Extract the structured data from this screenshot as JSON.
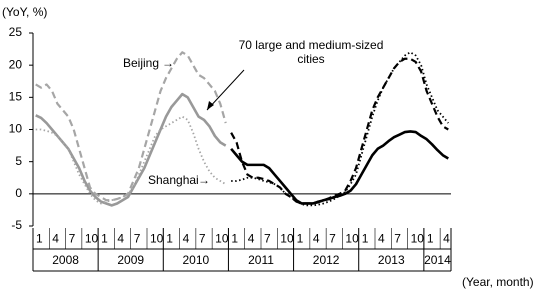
{
  "chart_data": {
    "type": "line",
    "y_axis_label": "(YoY, %)",
    "x_axis_label": "(Year, month)",
    "ylim": [
      -5,
      25
    ],
    "yticks": [
      -5,
      0,
      5,
      10,
      15,
      20,
      25
    ],
    "categories": [
      "1",
      null,
      null,
      "4",
      null,
      null,
      "7",
      null,
      null,
      "10",
      null,
      null,
      "1",
      null,
      null,
      "4",
      null,
      null,
      "7",
      null,
      null,
      "10",
      null,
      null,
      "1",
      null,
      null,
      "4",
      null,
      null,
      "7",
      null,
      null,
      "10",
      null,
      null,
      "1",
      null,
      null,
      "4",
      null,
      null,
      "7",
      null,
      null,
      "10",
      null,
      null,
      "1",
      null,
      null,
      "4",
      null,
      null,
      "7",
      null,
      null,
      "10",
      null,
      null,
      "1",
      null,
      null,
      "4",
      null,
      null,
      "7",
      null,
      null,
      "10",
      null,
      null,
      "1",
      null,
      null,
      "4",
      null
    ],
    "years": [
      "2008",
      "2009",
      "2010",
      "2011",
      "2012",
      "2013",
      "2014"
    ],
    "series": [
      {
        "color": "#999999",
        "style": "solid",
        "values": [
          12.2,
          11.8,
          11,
          10,
          9,
          8,
          7,
          5.5,
          4,
          2,
          0.5,
          -0.5,
          -1.2,
          -1.5,
          -1.8,
          -1.5,
          -1,
          -0.5,
          1,
          2.5,
          4,
          6,
          8,
          10,
          12,
          13.5,
          14.5,
          15.5,
          15,
          13.5,
          12,
          11.5,
          10.5,
          9,
          8,
          7.5,
          null,
          null,
          null,
          null,
          null,
          null,
          null,
          null,
          null,
          null,
          null,
          null,
          null,
          null,
          null,
          null,
          null,
          null,
          null,
          null,
          null,
          null,
          null,
          null,
          null,
          null,
          null,
          null,
          null,
          null,
          null,
          null,
          null,
          null,
          null,
          null,
          null,
          null,
          null,
          null,
          null
        ]
      },
      {
        "name": "70 large and medium-sized cities",
        "color": "#000000",
        "style": "solid",
        "values": [
          null,
          null,
          null,
          null,
          null,
          null,
          null,
          null,
          null,
          null,
          null,
          null,
          null,
          null,
          null,
          null,
          null,
          null,
          null,
          null,
          null,
          null,
          null,
          null,
          null,
          null,
          null,
          null,
          null,
          null,
          null,
          null,
          null,
          null,
          null,
          null,
          7,
          6,
          5,
          4.5,
          4.5,
          4.5,
          4.5,
          4,
          3,
          2,
          1,
          0,
          -1,
          -1.5,
          -1.5,
          -1.5,
          -1.3,
          -1,
          -0.8,
          -0.5,
          -0.3,
          0,
          0.5,
          1.5,
          3,
          4.5,
          6,
          7,
          7.5,
          8.2,
          8.8,
          9.2,
          9.6,
          9.7,
          9.6,
          9,
          8.5,
          7.7,
          6.8,
          6,
          5.5
        ]
      },
      {
        "color": "#a6a6a6",
        "style": "dashed",
        "values": [
          17,
          16.5,
          17,
          16,
          14,
          13,
          12,
          10,
          7,
          4,
          1,
          0,
          -0.5,
          -1,
          -1,
          -0.8,
          -0.5,
          0,
          2,
          4,
          7,
          10,
          13,
          16,
          18,
          19.5,
          21,
          22,
          21.5,
          20,
          18.5,
          18,
          17,
          16,
          14,
          11,
          null,
          null,
          null,
          null,
          null,
          null,
          null,
          null,
          null,
          null,
          null,
          null,
          null,
          null,
          null,
          null,
          null,
          null,
          null,
          null,
          null,
          null,
          null,
          null,
          null,
          null,
          null,
          null,
          null,
          null,
          null,
          null,
          null,
          null,
          null,
          null,
          null,
          null,
          null,
          null,
          null
        ]
      },
      {
        "name": "Beijing",
        "color": "#000000",
        "style": "dashed",
        "values": [
          null,
          null,
          null,
          null,
          null,
          null,
          null,
          null,
          null,
          null,
          null,
          null,
          null,
          null,
          null,
          null,
          null,
          null,
          null,
          null,
          null,
          null,
          null,
          null,
          null,
          null,
          null,
          null,
          null,
          null,
          null,
          null,
          null,
          null,
          null,
          null,
          9.5,
          8,
          5,
          3,
          2.5,
          2.5,
          2.3,
          2,
          1.5,
          1,
          0,
          -0.5,
          -1.2,
          -1.5,
          -1.5,
          -1.5,
          -1.2,
          -1,
          -0.7,
          -0.3,
          0,
          0.5,
          2,
          4,
          7,
          10,
          13,
          15,
          16.5,
          18,
          19.5,
          20.5,
          21,
          21,
          20.5,
          19,
          16,
          14,
          12,
          10.5,
          10
        ]
      },
      {
        "color": "#a6a6a6",
        "style": "dotted",
        "values": [
          10,
          10,
          9.8,
          9.5,
          9,
          8,
          7,
          5,
          3,
          1.5,
          0,
          -1,
          -1.5,
          -1.2,
          -1,
          -0.8,
          -0.5,
          0,
          1,
          3,
          5,
          7,
          9,
          10,
          10.5,
          11,
          11.5,
          12,
          11.5,
          9.5,
          7,
          5,
          3.5,
          2.5,
          2,
          1.5,
          null,
          null,
          null,
          null,
          null,
          null,
          null,
          null,
          null,
          null,
          null,
          null,
          null,
          null,
          null,
          null,
          null,
          null,
          null,
          null,
          null,
          null,
          null,
          null,
          null,
          null,
          null,
          null,
          null,
          null,
          null,
          null,
          null,
          null,
          null,
          null,
          null,
          null,
          null,
          null,
          null
        ]
      },
      {
        "name": "Shanghai",
        "color": "#000000",
        "style": "dotted",
        "values": [
          null,
          null,
          null,
          null,
          null,
          null,
          null,
          null,
          null,
          null,
          null,
          null,
          null,
          null,
          null,
          null,
          null,
          null,
          null,
          null,
          null,
          null,
          null,
          null,
          null,
          null,
          null,
          null,
          null,
          null,
          null,
          null,
          null,
          null,
          null,
          null,
          2,
          2,
          2.2,
          2.5,
          2.5,
          2.3,
          2,
          1.8,
          1.5,
          1,
          0,
          -0.5,
          -1.2,
          -1.6,
          -1.8,
          -1.8,
          -1.7,
          -1.5,
          -1.2,
          -0.8,
          -0.3,
          0.3,
          1.5,
          3,
          6,
          9,
          12,
          14.5,
          16.5,
          18,
          19.5,
          20.5,
          21.5,
          22,
          21.5,
          20,
          17,
          15,
          13,
          12,
          11
        ]
      }
    ]
  }
}
